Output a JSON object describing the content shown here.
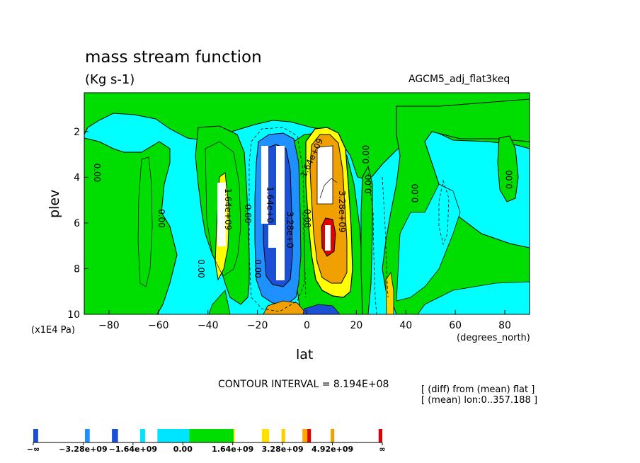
{
  "chart_data": {
    "type": "heatmap",
    "title": "mass stream function",
    "subtitle": "(Kg s-1)",
    "run_name": "AGCM5_adj_flat3keq",
    "xlabel": "lat",
    "xunit": "(degrees_north)",
    "ylabel": "plev",
    "yunit": "(x1E4 Pa)",
    "xlim": [
      -90,
      90
    ],
    "ylim": [
      10,
      0.3
    ],
    "xticks": [
      -80,
      -60,
      -40,
      -20,
      0,
      20,
      40,
      60,
      80
    ],
    "xtick_labels": [
      "−80",
      "−60",
      "−40",
      "−20",
      "0",
      "20",
      "40",
      "60",
      "80"
    ],
    "yticks": [
      2,
      4,
      6,
      8,
      10
    ],
    "ytick_labels": [
      "2",
      "4",
      "6",
      "8",
      "10"
    ],
    "contour_interval_text": "CONTOUR INTERVAL = 8.194E+08",
    "contour_interval": 819400000,
    "notes": [
      "[ (diff) from (mean) flat ]",
      "[ (mean) lon:0..357.188 ]"
    ],
    "contour_labels": [
      {
        "text": "0.00",
        "lat": -86,
        "plev": 3.8,
        "rotate": 90
      },
      {
        "text": "0.00",
        "lat": -60,
        "plev": 5.8,
        "rotate": 90
      },
      {
        "text": "0.00",
        "lat": -44,
        "plev": 8.0,
        "rotate": 90
      },
      {
        "text": "1.64e+09",
        "lat": -33,
        "plev": 5.4,
        "rotate": 90
      },
      {
        "text": "0.00",
        "lat": -25,
        "plev": 5.6,
        "rotate": 90
      },
      {
        "text": "0.00",
        "lat": -21,
        "plev": 8.0,
        "rotate": 90
      },
      {
        "text": "1.64e+0",
        "lat": -16,
        "plev": 5.2,
        "rotate": 90
      },
      {
        "text": "3.28e+0",
        "lat": -8,
        "plev": 6.3,
        "rotate": 90
      },
      {
        "text": "0.00",
        "lat": -1,
        "plev": 5.8,
        "rotate": 90
      },
      {
        "text": "1.64e+09",
        "lat": 3,
        "plev": 3.2,
        "rotate": -65
      },
      {
        "text": "3.28e+09",
        "lat": 13,
        "plev": 5.5,
        "rotate": 90
      },
      {
        "text": "0.00",
        "lat": 25,
        "plev": 3.0,
        "rotate": -90
      },
      {
        "text": "0.00",
        "lat": 26,
        "plev": 4.3,
        "rotate": -90
      },
      {
        "text": "0.00",
        "lat": 45,
        "plev": 4.7,
        "rotate": -90
      },
      {
        "text": "0.00",
        "lat": 83,
        "plev": 4.1,
        "rotate": -90
      }
    ],
    "colorbar": {
      "labels": [
        "−∞",
        "−3.28e+09",
        "−1.64e+09",
        "0.00",
        "1.64e+09",
        "3.28e+09",
        "4.92e+09",
        "∞"
      ],
      "levels": [
        -1e+30,
        -3280000000.0,
        -1640000000.0,
        0,
        1640000000.0,
        3280000000.0,
        4920000000.0,
        1e+30
      ],
      "segments": [
        {
          "color": "#1a4fd6",
          "weight": 0.2
        },
        {
          "color": "#ffffff",
          "weight": 1.9
        },
        {
          "color": "#1e90ff",
          "weight": 0.2
        },
        {
          "color": "#ffffff",
          "weight": 0.9
        },
        {
          "color": "#1a4fd6",
          "weight": 0.25
        },
        {
          "color": "#ffffff",
          "weight": 0.9
        },
        {
          "color": "#00e5ff",
          "weight": 0.2
        },
        {
          "color": "#ffffff",
          "weight": 0.5
        },
        {
          "color": "#00e5ff",
          "weight": 1.3
        },
        {
          "color": "#00dd00",
          "weight": 1.8
        },
        {
          "color": "#ffff00",
          "weight": 0.05
        },
        {
          "color": "#ffffff",
          "weight": 1.1
        },
        {
          "color": "#ffe000",
          "weight": 0.3
        },
        {
          "color": "#ffffff",
          "weight": 0.5
        },
        {
          "color": "#ffcc00",
          "weight": 0.15
        },
        {
          "color": "#ffffff",
          "weight": 0.7
        },
        {
          "color": "#ffa500",
          "weight": 0.2
        },
        {
          "color": "#e00000",
          "weight": 0.15
        },
        {
          "color": "#ffffff",
          "weight": 0.8
        },
        {
          "color": "#f0a000",
          "weight": 0.15
        },
        {
          "color": "#ffffff",
          "weight": 1.8
        },
        {
          "color": "#e00000",
          "weight": 0.15
        }
      ]
    },
    "colors": {
      "cyan": "#00ffff",
      "green": "#00dd00",
      "light_blue": "#1e90ff",
      "blue": "#1a4fd6",
      "white": "#ffffff",
      "yellow": "#ffff00",
      "gold": "#ffd700",
      "orange": "#f0a000",
      "red": "#e00000"
    }
  }
}
